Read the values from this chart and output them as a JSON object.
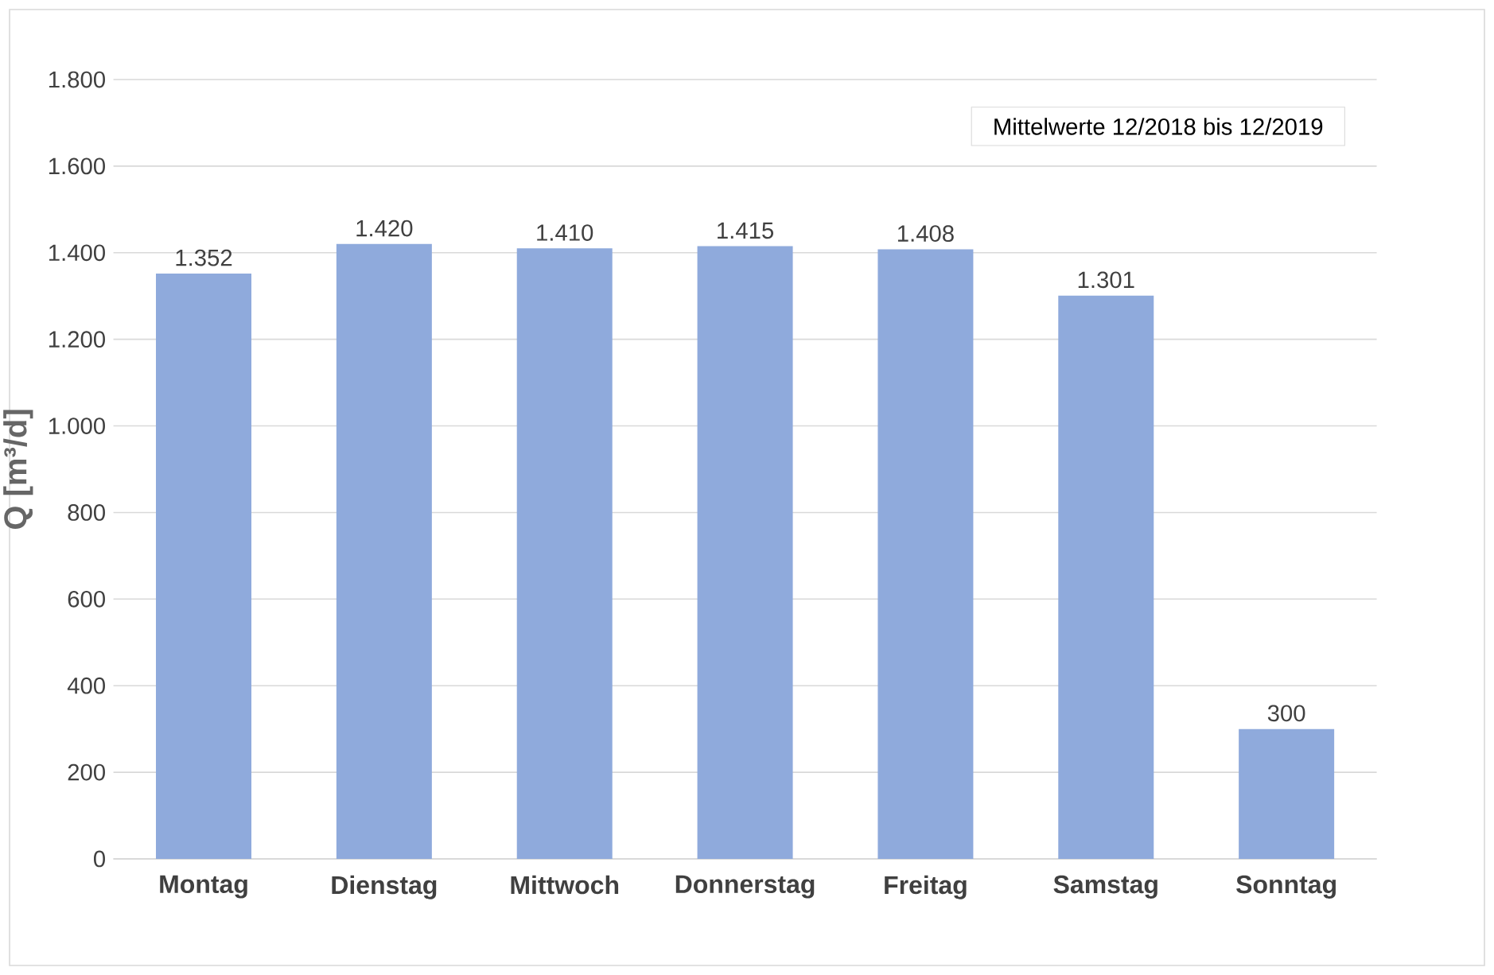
{
  "chart_data": {
    "type": "bar",
    "ylabel": "Q [m³/d]",
    "categories": [
      "Montag",
      "Dienstag",
      "Mittwoch",
      "Donnerstag",
      "Freitag",
      "Samstag",
      "Sonntag"
    ],
    "values": [
      1352,
      1420,
      1410,
      1415,
      1408,
      1301,
      300
    ],
    "value_labels": [
      "1.352",
      "1.420",
      "1.410",
      "1.415",
      "1.408",
      "1.301",
      "300"
    ],
    "color": "#8faadc",
    "ylim": [
      0,
      1800
    ],
    "yticks": [
      {
        "value": 0,
        "label": "0"
      },
      {
        "value": 200,
        "label": "200"
      },
      {
        "value": 400,
        "label": "400"
      },
      {
        "value": 600,
        "label": "600"
      },
      {
        "value": 800,
        "label": "800"
      },
      {
        "value": 1000,
        "label": "1.000"
      },
      {
        "value": 1200,
        "label": "1.200"
      },
      {
        "value": 1400,
        "label": "1.400"
      },
      {
        "value": 1600,
        "label": "1.600"
      },
      {
        "value": 1800,
        "label": "1.800"
      }
    ],
    "grid": "y",
    "annotations": [
      "Mittelwerte 12/2018 bis 12/2019"
    ]
  }
}
